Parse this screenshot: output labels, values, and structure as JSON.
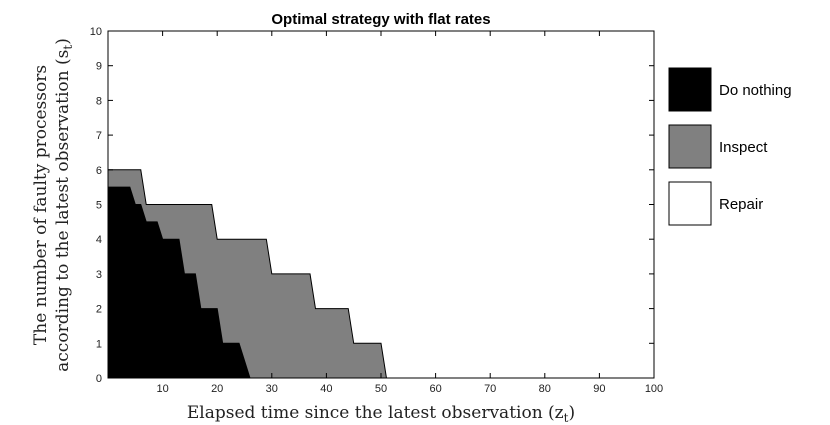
{
  "chart_data": {
    "type": "area",
    "title": "Optimal strategy with flat rates",
    "xlabel": "Elapsed time since the latest observation (z",
    "xlabel_sub": "t",
    "xlabel_close": ")",
    "ylabel_line1": "The number of faulty processors",
    "ylabel_line2": "according to the latest observation (s",
    "ylabel_sub": "t",
    "ylabel_close": ")",
    "xlim": [
      0,
      100
    ],
    "ylim": [
      0,
      10
    ],
    "xticks": [
      10,
      20,
      30,
      40,
      50,
      60,
      70,
      80,
      90,
      100
    ],
    "yticks": [
      0,
      1,
      2,
      3,
      4,
      5,
      6,
      7,
      8,
      9,
      10
    ],
    "regions": [
      {
        "name": "Inspect",
        "color": "#808080",
        "boundary": [
          [
            0,
            6
          ],
          [
            6,
            6
          ],
          [
            7,
            5
          ],
          [
            19,
            5
          ],
          [
            20,
            4
          ],
          [
            29,
            4
          ],
          [
            30,
            3
          ],
          [
            37,
            3
          ],
          [
            38,
            2
          ],
          [
            44,
            2
          ],
          [
            45,
            1
          ],
          [
            50,
            1
          ],
          [
            51,
            0
          ]
        ]
      },
      {
        "name": "Do nothing",
        "color": "#000000",
        "boundary": [
          [
            0,
            5.5
          ],
          [
            4,
            5.5
          ],
          [
            5,
            5
          ],
          [
            6,
            5
          ],
          [
            7,
            4.5
          ],
          [
            9,
            4.5
          ],
          [
            10,
            4
          ],
          [
            13,
            4
          ],
          [
            14,
            3
          ],
          [
            16,
            3
          ],
          [
            17,
            2
          ],
          [
            20,
            2
          ],
          [
            21,
            1
          ],
          [
            24,
            1
          ],
          [
            26,
            0
          ]
        ]
      }
    ],
    "legend": [
      {
        "label": "Do nothing",
        "color": "#000000"
      },
      {
        "label": "Inspect",
        "color": "#808080"
      },
      {
        "label": "Repair",
        "color": "#ffffff"
      }
    ]
  }
}
